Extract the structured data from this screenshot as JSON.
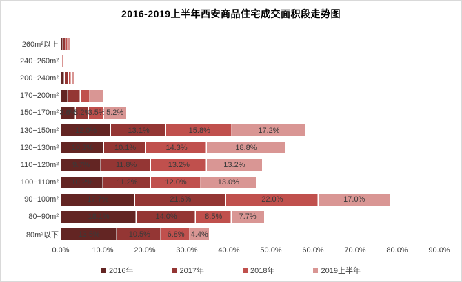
{
  "chart_data": {
    "type": "bar",
    "orientation": "horizontal",
    "stacked": true,
    "title": "2016-2019上半年西安商品住宅成交面积段走势图",
    "categories": [
      "260m²以上",
      "240−260m²",
      "200−240m²",
      "170−200m²",
      "150−170m²",
      "130−150m²",
      "120−130m²",
      "110−120m²",
      "100−110m²",
      "90−100m²",
      "80−90m²",
      "80m²以下"
    ],
    "series": [
      {
        "name": "2016年",
        "color": "#632523",
        "values": [
          0.7,
          0.1,
          1.0,
          1.8,
          3.6,
          12.0,
          10.3,
          9.7,
          10.2,
          17.7,
          18.1,
          13.5
        ]
      },
      {
        "name": "2017年",
        "color": "#943634",
        "values": [
          0.6,
          0.1,
          0.9,
          3.0,
          3.2,
          13.1,
          10.1,
          11.8,
          11.2,
          21.6,
          14.0,
          10.5
        ]
      },
      {
        "name": "2018年",
        "color": "#C0504D",
        "values": [
          0.5,
          0.1,
          0.7,
          2.2,
          3.5,
          15.8,
          14.3,
          13.2,
          12.0,
          22.0,
          8.5,
          6.8
        ]
      },
      {
        "name": "2019上半年",
        "color": "#D99694",
        "values": [
          0.3,
          0.2,
          0.5,
          3.1,
          5.2,
          17.2,
          18.8,
          13.2,
          13.0,
          17.0,
          7.7,
          4.4
        ]
      }
    ],
    "value_labels_visible": [
      false,
      false,
      false,
      false,
      true,
      true,
      true,
      true,
      true,
      true,
      true,
      true
    ],
    "value_label_format": "one_decimal_percent",
    "x_ticks": [
      "0.0%",
      "10.0%",
      "20.0%",
      "30.0%",
      "40.0%",
      "50.0%",
      "60.0%",
      "70.0%",
      "80.0%",
      "90.0%"
    ],
    "x_max": 90,
    "grid": false,
    "legend_position": "bottom",
    "colors": {
      "axis_line": "#808080",
      "baseline": "#bfbfbf",
      "label_text": "#3a3a3a",
      "tick_text": "#3f3f3f",
      "frame_border": "#d9d9d9"
    }
  }
}
